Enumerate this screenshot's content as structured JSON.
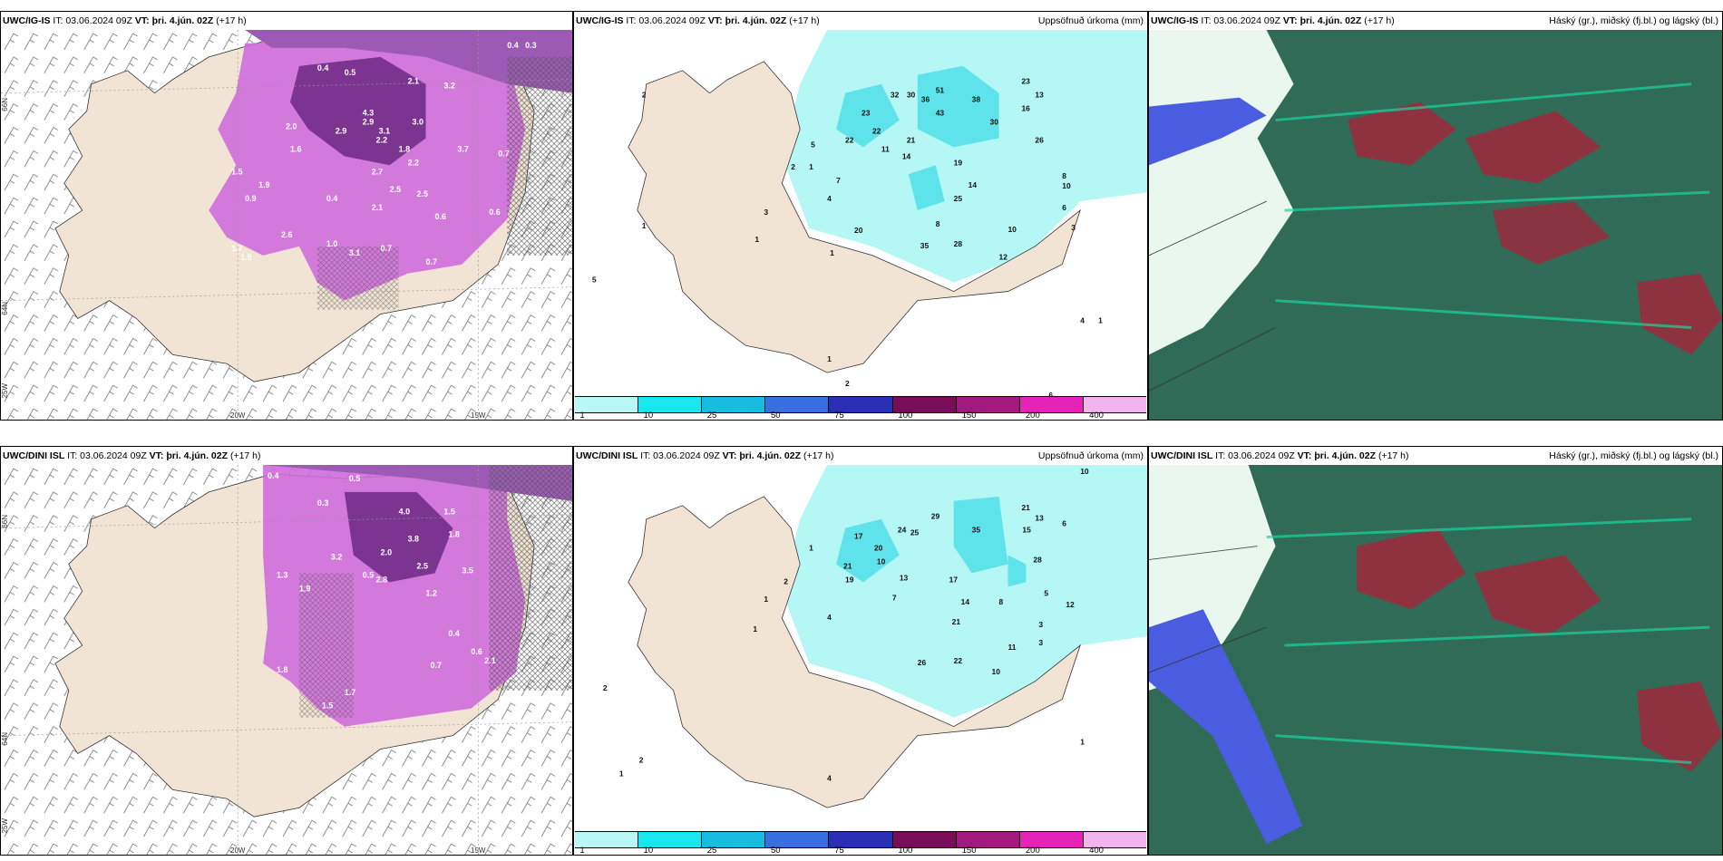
{
  "panels": {
    "top_left": {
      "model": "UWC/IG-IS",
      "it": "IT: 03.06.2024 09Z",
      "vt_label": "VT:",
      "vt": "þri. 4.jún. 02Z",
      "lead": "(+17 h)"
    },
    "top_mid": {
      "model": "UWC/IG-IS",
      "it": "IT: 03.06.2024 09Z",
      "vt_label": "VT:",
      "vt": "þri. 4.jún. 02Z",
      "lead": "(+17 h)",
      "right": "Uppsöfnuð úrkoma (mm)"
    },
    "top_right": {
      "model": "UWC/IG-IS",
      "it": "IT: 03.06.2024 09Z",
      "vt_label": "VT:",
      "vt": "þri. 4.jún. 02Z",
      "lead": "(+17 h)",
      "right": "Háský (gr.), miðský (fj.bl.) og lágský (bl.)"
    },
    "bot_left": {
      "model": "UWC/DINI ISL",
      "it": "IT: 03.06.2024 09Z",
      "vt_label": "VT:",
      "vt": "þri. 4.jún. 02Z",
      "lead": "(+17 h)"
    },
    "bot_mid": {
      "model": "UWC/DINI ISL",
      "it": "IT: 03.06.2024 09Z",
      "vt_label": "VT:",
      "vt": "þri. 4.jún. 02Z",
      "lead": "(+17 h)",
      "right": "Uppsöfnuð úrkoma (mm)"
    },
    "bot_right": {
      "model": "UWC/DINI ISL",
      "it": "IT: 03.06.2024 09Z",
      "vt_label": "VT:",
      "vt": "þri. 4.jún. 02Z",
      "lead": "(+17 h)",
      "right": "Háský (gr.), miðský (fj.bl.) og lágský (bl.)"
    }
  },
  "axis_labels": {
    "lat66": "66N",
    "lat64": "64N",
    "lon25": "25W",
    "lon20": "20W",
    "lon15": "15W"
  },
  "colorbar": {
    "ticks": [
      "1",
      "10",
      "25",
      "50",
      "75",
      "100",
      "150",
      "200",
      "400"
    ],
    "colors": [
      "#b8f7f7",
      "#19e6ee",
      "#18bce0",
      "#3a6fe0",
      "#2b2fb5",
      "#7a0d5a",
      "#a4197f",
      "#e623b8",
      "#f2b3ee"
    ]
  },
  "colors": {
    "land": "#f2e4d4",
    "precip_light": "#b4f7f4",
    "precip_mid": "#5fe3ea",
    "purple_dark": "#5a2a6e",
    "purple_mid": "#a24bc4",
    "purple_light": "#e07ce8",
    "cloud_green": "#2f6b56",
    "cloud_teal": "#1ad3a0",
    "cloud_red": "#a0283c",
    "cloud_blue": "#4a5de0"
  },
  "labels": {
    "top_left": [
      "0.4",
      "0.3",
      "0.4",
      "0.5",
      "2.1",
      "3.2",
      "4.3",
      "2.9",
      "3.0",
      "3.1",
      "2.2",
      "1.8",
      "2.2",
      "0.7",
      "2.0",
      "2.9",
      "1.6",
      "3.7",
      "2.5",
      "1.5",
      "1.9",
      "0.6",
      "2.1",
      "2.7",
      "0.9",
      "2.5",
      "0.4",
      "0.6",
      "0.7",
      "3.1",
      "1.0",
      "0.7",
      "2.6",
      "1.7",
      "1.5"
    ],
    "top_mid": [
      "32",
      "30",
      "36",
      "51",
      "43",
      "38",
      "30",
      "23",
      "13",
      "16",
      "23",
      "22",
      "26",
      "22",
      "11",
      "19",
      "21",
      "14",
      "14",
      "25",
      "8",
      "10",
      "20",
      "35",
      "28",
      "3",
      "8",
      "10",
      "12",
      "4",
      "7",
      "6",
      "5",
      "2",
      "1",
      "3",
      "5",
      "2",
      "1",
      "1",
      "1",
      "4",
      "1",
      "2",
      "6",
      "1"
    ],
    "bot_left": [
      "0.4",
      "0.5",
      "0.3",
      "4.0",
      "3.8",
      "1.5",
      "1.8",
      "2.8",
      "3.2",
      "2.0",
      "3.5",
      "0.5",
      "2.5",
      "1.2",
      "1.3",
      "1.9",
      "0.4",
      "0.6",
      "1.8",
      "1.5",
      "1.7",
      "2.1",
      "0.7"
    ],
    "bot_mid": [
      "10",
      "21",
      "29",
      "35",
      "24",
      "25",
      "13",
      "15",
      "17",
      "20",
      "10",
      "28",
      "21",
      "19",
      "13",
      "17",
      "14",
      "8",
      "21",
      "26",
      "22",
      "11",
      "10",
      "3",
      "3",
      "4",
      "7",
      "6",
      "5",
      "12",
      "2",
      "1",
      "1",
      "1",
      "4",
      "2",
      "2",
      "1",
      "1"
    ]
  }
}
